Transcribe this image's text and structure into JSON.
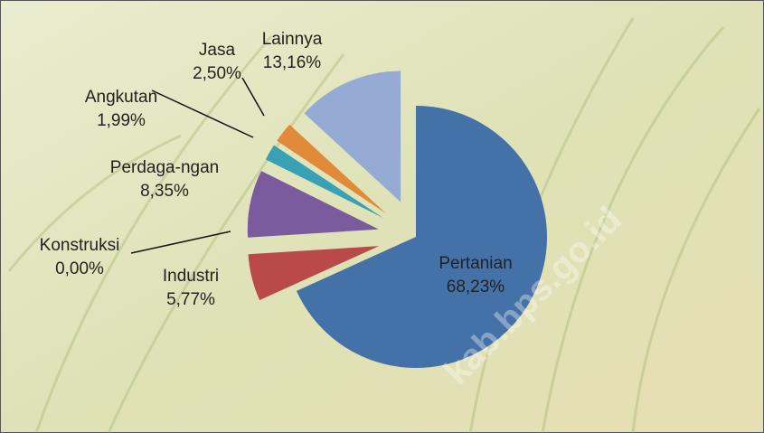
{
  "chart_data": {
    "type": "pie",
    "categories": [
      "Pertanian",
      "Industri",
      "Konstruksi",
      "Perdaga-ngan",
      "Angkutan",
      "Jasa",
      "Lainnya"
    ],
    "values": [
      68.23,
      5.77,
      0.0,
      8.35,
      1.99,
      2.5,
      13.16
    ],
    "value_labels": [
      "68,23%",
      "5,77%",
      "0,00%",
      "8,35%",
      "1,99%",
      "2,50%",
      "13,16%"
    ],
    "colors": [
      "#4472a8",
      "#b94a48",
      "#8aaa4a",
      "#7a5c9e",
      "#3aa0b5",
      "#e08a3a",
      "#95abd3"
    ],
    "watermark": "kab.bps.go.id"
  }
}
